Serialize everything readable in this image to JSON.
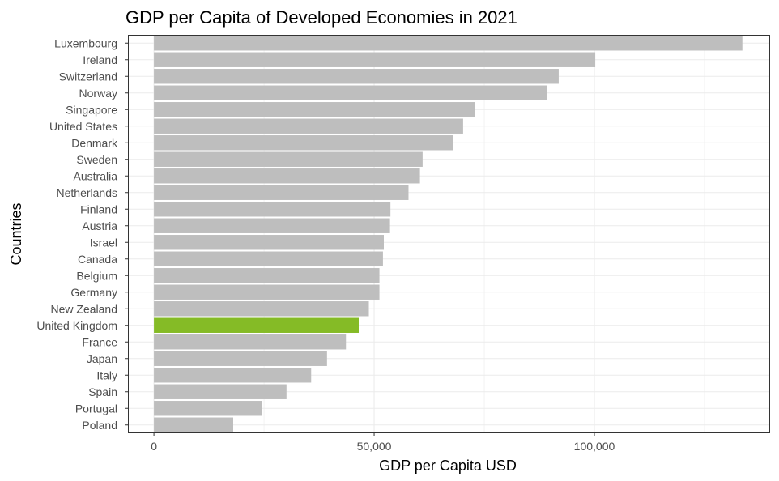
{
  "chart_data": {
    "type": "bar",
    "orientation": "horizontal",
    "title": "GDP per Capita of Developed Economies in 2021",
    "xlabel": "GDP per Capita USD",
    "ylabel": "Countries",
    "xlim": [
      -5900,
      139900
    ],
    "xticks": [
      0,
      50000,
      100000
    ],
    "xtick_labels": [
      "0",
      "50,000",
      "100,000"
    ],
    "grid": true,
    "legend": "none",
    "colors": {
      "default": "#bebebe",
      "highlight": "#85bb26",
      "panel_border": "#333333",
      "grid": "#ebebeb"
    },
    "highlight": "United Kingdom",
    "categories": [
      "Luxembourg",
      "Ireland",
      "Switzerland",
      "Norway",
      "Singapore",
      "United States",
      "Denmark",
      "Sweden",
      "Australia",
      "Netherlands",
      "Finland",
      "Austria",
      "Israel",
      "Canada",
      "Belgium",
      "Germany",
      "New Zealand",
      "United Kingdom",
      "France",
      "Japan",
      "Italy",
      "Spain",
      "Portugal",
      "Poland"
    ],
    "values": [
      133600,
      100200,
      91900,
      89200,
      72800,
      70200,
      68000,
      61000,
      60400,
      57800,
      53700,
      53600,
      52200,
      52000,
      51200,
      51200,
      48800,
      46500,
      43600,
      39300,
      35700,
      30100,
      24600,
      18000
    ]
  }
}
